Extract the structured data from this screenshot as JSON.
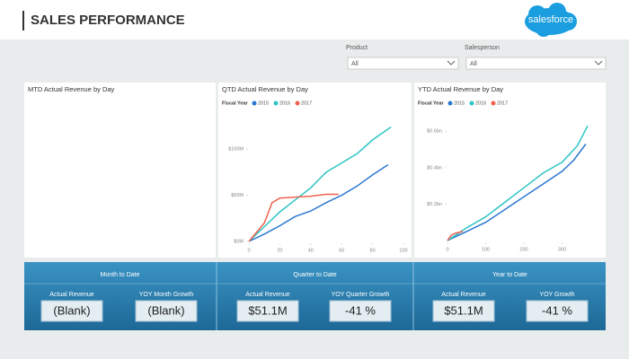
{
  "header": {
    "title": "SALES PERFORMANCE",
    "logo": "salesforce"
  },
  "filters": [
    {
      "label": "Product",
      "value": "All"
    },
    {
      "label": "Salesperson",
      "value": "All"
    }
  ],
  "chart_data": [
    {
      "type": "line",
      "title": "MTD Actual Revenue by Day"
    },
    {
      "type": "line",
      "title": "QTD Actual Revenue by Day",
      "legend_title": "Fiscal Year",
      "xlim": [
        0,
        100
      ],
      "xticks": [
        0,
        20,
        40,
        60,
        80,
        100
      ],
      "ylim": [
        0,
        140
      ],
      "yticks": [
        {
          "value": 0,
          "label": "$0M"
        },
        {
          "value": 50,
          "label": "$50M"
        },
        {
          "value": 100,
          "label": "$100M"
        }
      ],
      "series": [
        {
          "name": "2015",
          "color": "#2b78d1",
          "x": [
            0,
            10,
            20,
            30,
            40,
            50,
            60,
            70,
            80,
            90
          ],
          "values": [
            0,
            8,
            17,
            27,
            33,
            42,
            50,
            60,
            72,
            83
          ]
        },
        {
          "name": "2016",
          "color": "#2ec4c4",
          "x": [
            0,
            10,
            20,
            30,
            40,
            50,
            60,
            70,
            80,
            92
          ],
          "values": [
            0,
            16,
            32,
            45,
            58,
            75,
            85,
            95,
            110,
            124
          ]
        },
        {
          "name": "2017",
          "color": "#f0614e",
          "x": [
            0,
            10,
            15,
            20,
            30,
            40,
            50,
            58
          ],
          "values": [
            0,
            20,
            42,
            47,
            48,
            49,
            51,
            51
          ]
        }
      ]
    },
    {
      "type": "line",
      "title": "YTD Actual Revenue by Day",
      "legend_title": "Fiscal Year",
      "xlim": [
        0,
        400
      ],
      "xticks": [
        0,
        100,
        200,
        300
      ],
      "ylim": [
        0,
        0.7
      ],
      "yticks": [
        {
          "value": 0.2,
          "label": "$0.2bn"
        },
        {
          "value": 0.4,
          "label": "$0.4bn"
        },
        {
          "value": 0.6,
          "label": "$0.6bn"
        }
      ],
      "series": [
        {
          "name": "2015",
          "color": "#2b78d1",
          "x": [
            0,
            50,
            100,
            150,
            200,
            250,
            300,
            330,
            362
          ],
          "values": [
            0,
            0.05,
            0.1,
            0.17,
            0.24,
            0.31,
            0.38,
            0.44,
            0.53
          ]
        },
        {
          "name": "2016",
          "color": "#2ec4c4",
          "x": [
            0,
            50,
            100,
            150,
            200,
            250,
            300,
            340,
            367
          ],
          "values": [
            0,
            0.07,
            0.13,
            0.21,
            0.29,
            0.37,
            0.43,
            0.52,
            0.63
          ]
        },
        {
          "name": "2017",
          "color": "#f0614e",
          "x": [
            0,
            10,
            20,
            30,
            40
          ],
          "values": [
            0,
            0.03,
            0.04,
            0.045,
            0.05
          ]
        }
      ]
    }
  ],
  "kpis": [
    {
      "title": "Month to Date",
      "items": [
        {
          "label": "Actual Revenue",
          "value": "(Blank)"
        },
        {
          "label": "YOY Month Growth",
          "value": "(Blank)"
        }
      ]
    },
    {
      "title": "Quarter to Date",
      "items": [
        {
          "label": "Actual Revenue",
          "value": "$51.1M"
        },
        {
          "label": "YOY Quarter Growth",
          "value": "-41 %"
        }
      ]
    },
    {
      "title": "Year to Date",
      "items": [
        {
          "label": "Actual Revenue",
          "value": "$51.1M"
        },
        {
          "label": "YOY Growth",
          "value": "-41 %"
        }
      ]
    }
  ]
}
